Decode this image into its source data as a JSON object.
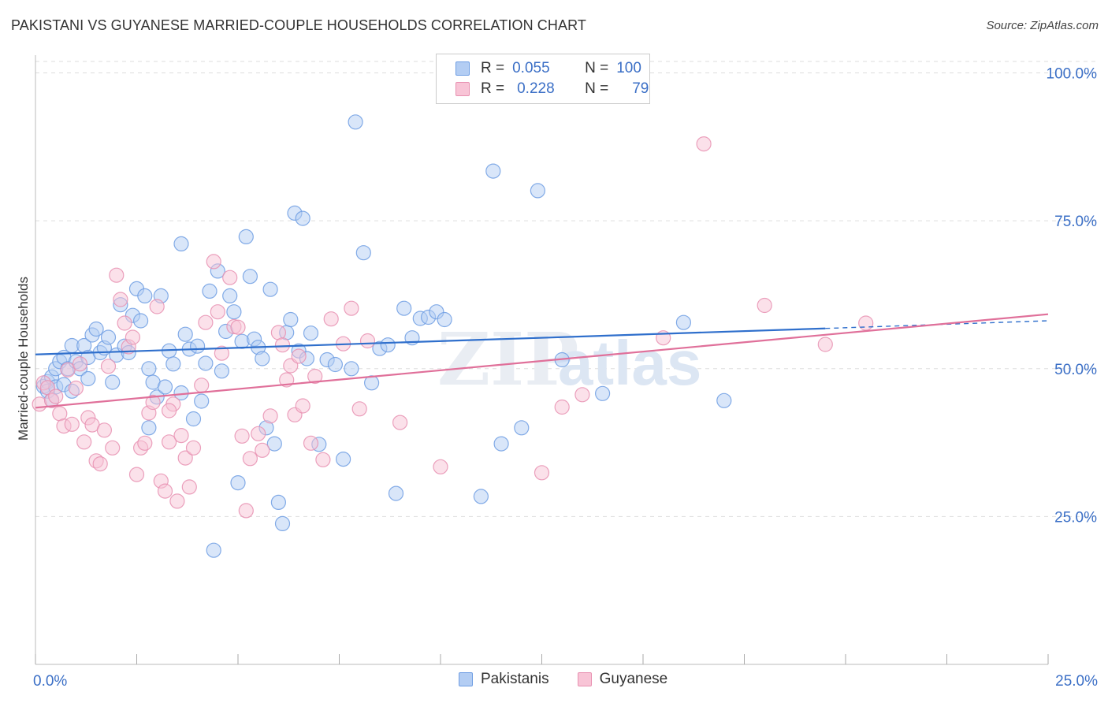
{
  "title": "PAKISTANI VS GUYANESE MARRIED-COUPLE HOUSEHOLDS CORRELATION CHART",
  "source": "Source: ZipAtlas.com",
  "watermark": {
    "zip": "ZIP",
    "atlas": "atlas"
  },
  "legend": {
    "r_label": "R =",
    "n_label": "N =",
    "rows": [
      {
        "r": "0.055",
        "n": "100",
        "fill": "#b3cdf3",
        "stroke": "#6f9ee3"
      },
      {
        "r": "0.228",
        "n": "79",
        "fill": "#f8c4d6",
        "stroke": "#e891b1"
      }
    ]
  },
  "bottom_legend": [
    "Pakistanis",
    "Guyanese"
  ],
  "chart_data": {
    "type": "scatter",
    "title": "PAKISTANI VS GUYANESE MARRIED-COUPLE HOUSEHOLDS CORRELATION CHART",
    "xlabel": "",
    "ylabel": "Married-couple Households",
    "xlim": [
      0,
      25
    ],
    "ylim": [
      0,
      103
    ],
    "x_tick_labels": [
      "0.0%",
      "25.0%"
    ],
    "y_ticks": [
      25,
      50,
      75,
      100
    ],
    "y_tick_labels": [
      "25.0%",
      "50.0%",
      "75.0%",
      "100.0%"
    ],
    "grid": true,
    "legend_position": "top-center",
    "series": [
      {
        "name": "Pakistanis",
        "color": "#6f9ee3",
        "fill": "#b3cdf3",
        "trend_color": "#2f6fcc",
        "trend": {
          "x0": 0,
          "y0": 52.4,
          "x1": 19.5,
          "y1": 56.8,
          "x_dash_end": 25,
          "y_dash_end": 58.1
        },
        "points": [
          [
            0.2,
            47.0
          ],
          [
            0.3,
            47.8
          ],
          [
            0.3,
            46.2
          ],
          [
            0.4,
            48.6
          ],
          [
            0.5,
            50.0
          ],
          [
            0.5,
            46.9
          ],
          [
            0.6,
            51.2
          ],
          [
            0.7,
            51.9
          ],
          [
            0.7,
            47.3
          ],
          [
            0.8,
            50.0
          ],
          [
            0.9,
            53.9
          ],
          [
            0.9,
            46.2
          ],
          [
            1.0,
            51.2
          ],
          [
            1.1,
            50.0
          ],
          [
            1.2,
            53.9
          ],
          [
            1.3,
            51.9
          ],
          [
            1.4,
            55.7
          ],
          [
            1.5,
            56.7
          ],
          [
            1.6,
            52.7
          ],
          [
            1.7,
            53.5
          ],
          [
            1.8,
            55.3
          ],
          [
            1.9,
            47.7
          ],
          [
            2.0,
            52.3
          ],
          [
            2.1,
            60.8
          ],
          [
            2.2,
            53.8
          ],
          [
            2.3,
            52.7
          ],
          [
            2.4,
            59.0
          ],
          [
            2.5,
            63.5
          ],
          [
            2.6,
            58.1
          ],
          [
            2.7,
            62.3
          ],
          [
            2.8,
            50.0
          ],
          [
            2.9,
            47.7
          ],
          [
            3.0,
            45.2
          ],
          [
            3.1,
            62.3
          ],
          [
            3.2,
            46.9
          ],
          [
            3.3,
            53.0
          ],
          [
            3.4,
            50.8
          ],
          [
            3.6,
            71.1
          ],
          [
            3.7,
            55.8
          ],
          [
            3.8,
            53.3
          ],
          [
            3.9,
            41.5
          ],
          [
            4.0,
            53.8
          ],
          [
            4.1,
            44.5
          ],
          [
            4.2,
            50.9
          ],
          [
            4.3,
            63.1
          ],
          [
            4.4,
            19.3
          ],
          [
            4.5,
            66.5
          ],
          [
            4.6,
            49.6
          ],
          [
            4.7,
            56.3
          ],
          [
            4.8,
            62.3
          ],
          [
            4.9,
            59.6
          ],
          [
            5.0,
            30.7
          ],
          [
            5.1,
            54.6
          ],
          [
            5.2,
            72.3
          ],
          [
            5.3,
            65.6
          ],
          [
            5.4,
            55.0
          ],
          [
            5.5,
            53.6
          ],
          [
            5.6,
            51.7
          ],
          [
            5.7,
            40.0
          ],
          [
            5.8,
            63.4
          ],
          [
            5.9,
            37.3
          ],
          [
            6.0,
            27.4
          ],
          [
            6.1,
            23.8
          ],
          [
            6.2,
            56.1
          ],
          [
            6.3,
            58.3
          ],
          [
            6.4,
            76.3
          ],
          [
            6.5,
            53.0
          ],
          [
            6.6,
            75.4
          ],
          [
            6.7,
            51.7
          ],
          [
            6.8,
            56.0
          ],
          [
            7.0,
            37.2
          ],
          [
            7.2,
            51.5
          ],
          [
            7.4,
            50.7
          ],
          [
            7.6,
            34.7
          ],
          [
            7.8,
            50.0
          ],
          [
            7.9,
            91.7
          ],
          [
            8.1,
            69.6
          ],
          [
            8.3,
            47.6
          ],
          [
            8.5,
            53.4
          ],
          [
            8.7,
            54.0
          ],
          [
            8.9,
            28.9
          ],
          [
            9.1,
            60.2
          ],
          [
            9.3,
            55.2
          ],
          [
            9.5,
            58.5
          ],
          [
            9.7,
            58.7
          ],
          [
            9.9,
            59.6
          ],
          [
            10.1,
            58.3
          ],
          [
            11.0,
            28.4
          ],
          [
            11.3,
            83.4
          ],
          [
            11.5,
            37.3
          ],
          [
            12.0,
            40.0
          ],
          [
            12.4,
            80.1
          ],
          [
            13.0,
            51.5
          ],
          [
            14.0,
            45.8
          ],
          [
            16.0,
            57.8
          ],
          [
            17.0,
            44.6
          ],
          [
            0.4,
            44.7
          ],
          [
            1.3,
            48.3
          ],
          [
            2.8,
            40.0
          ],
          [
            3.6,
            45.9
          ]
        ]
      },
      {
        "name": "Guyanese",
        "color": "#e891b1",
        "fill": "#f8c4d6",
        "trend_color": "#e0709a",
        "trend": {
          "x0": 0,
          "y0": 43.4,
          "x1": 25,
          "y1": 59.2
        },
        "points": [
          [
            0.1,
            44.0
          ],
          [
            0.2,
            47.6
          ],
          [
            0.3,
            46.8
          ],
          [
            0.4,
            44.6
          ],
          [
            0.5,
            45.3
          ],
          [
            0.6,
            42.4
          ],
          [
            0.7,
            40.3
          ],
          [
            0.8,
            49.8
          ],
          [
            0.9,
            40.6
          ],
          [
            1.0,
            46.7
          ],
          [
            1.1,
            50.8
          ],
          [
            1.2,
            37.6
          ],
          [
            1.3,
            41.7
          ],
          [
            1.4,
            40.5
          ],
          [
            1.5,
            34.4
          ],
          [
            1.6,
            33.9
          ],
          [
            1.7,
            39.6
          ],
          [
            1.8,
            50.4
          ],
          [
            1.9,
            36.6
          ],
          [
            2.0,
            65.8
          ],
          [
            2.1,
            61.7
          ],
          [
            2.2,
            57.7
          ],
          [
            2.3,
            53.7
          ],
          [
            2.4,
            55.3
          ],
          [
            2.5,
            32.1
          ],
          [
            2.6,
            36.6
          ],
          [
            2.7,
            37.4
          ],
          [
            2.8,
            42.5
          ],
          [
            2.9,
            44.3
          ],
          [
            3.0,
            60.5
          ],
          [
            3.1,
            31.0
          ],
          [
            3.2,
            29.3
          ],
          [
            3.3,
            37.6
          ],
          [
            3.4,
            44.0
          ],
          [
            3.5,
            27.6
          ],
          [
            3.6,
            38.7
          ],
          [
            3.7,
            34.9
          ],
          [
            3.8,
            30.0
          ],
          [
            3.9,
            36.6
          ],
          [
            4.1,
            47.2
          ],
          [
            4.2,
            57.8
          ],
          [
            4.4,
            68.1
          ],
          [
            4.5,
            59.6
          ],
          [
            4.6,
            52.6
          ],
          [
            4.8,
            65.4
          ],
          [
            4.9,
            57.1
          ],
          [
            5.0,
            57.0
          ],
          [
            5.1,
            38.6
          ],
          [
            5.2,
            26.0
          ],
          [
            5.3,
            34.8
          ],
          [
            5.5,
            39.0
          ],
          [
            5.6,
            36.2
          ],
          [
            5.8,
            42.0
          ],
          [
            6.0,
            56.1
          ],
          [
            6.1,
            54.0
          ],
          [
            6.2,
            48.1
          ],
          [
            6.3,
            50.5
          ],
          [
            6.4,
            42.2
          ],
          [
            6.5,
            52.1
          ],
          [
            6.6,
            43.7
          ],
          [
            6.8,
            37.4
          ],
          [
            6.9,
            48.7
          ],
          [
            7.1,
            34.6
          ],
          [
            7.3,
            58.4
          ],
          [
            7.6,
            54.2
          ],
          [
            7.8,
            60.2
          ],
          [
            8.0,
            43.2
          ],
          [
            8.2,
            54.7
          ],
          [
            9.0,
            40.9
          ],
          [
            10.0,
            33.4
          ],
          [
            12.5,
            32.4
          ],
          [
            13.0,
            43.5
          ],
          [
            13.5,
            45.6
          ],
          [
            15.5,
            55.2
          ],
          [
            16.5,
            88.0
          ],
          [
            18.0,
            60.7
          ],
          [
            19.5,
            54.1
          ],
          [
            20.5,
            57.7
          ],
          [
            3.3,
            42.9
          ]
        ]
      }
    ]
  }
}
